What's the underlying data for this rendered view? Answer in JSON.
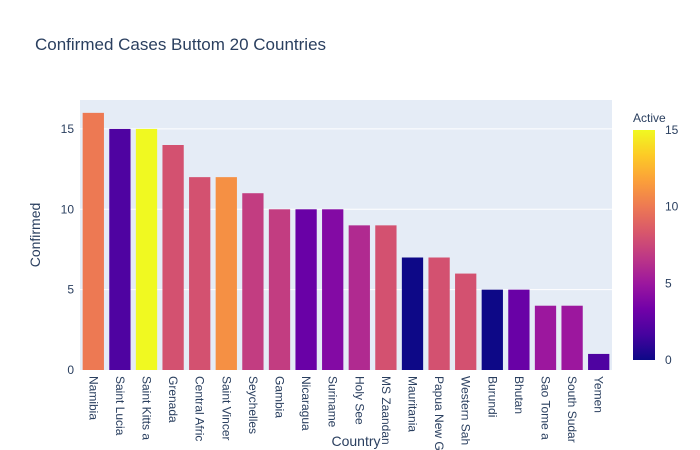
{
  "chart_data": {
    "type": "bar",
    "title": "Confirmed Cases Buttom 20 Countries",
    "xlabel": "Country",
    "ylabel": "Confirmed",
    "ylim": [
      0,
      16.8
    ],
    "yticks": [
      0,
      5,
      10,
      15
    ],
    "grid": true,
    "categories": [
      "Namibia",
      "Saint Lucia",
      "Saint Kitts a",
      "Grenada",
      "Central Afric",
      "Saint Vincer",
      "Seychelles",
      "Gambia",
      "Nicaragua",
      "Suriname",
      "Holy See",
      "MS Zaandan",
      "Mauritania",
      "Papua New G",
      "Western Sah",
      "Burundi",
      "Bhutan",
      "Sao Tome a",
      "South Sudar",
      "Yemen"
    ],
    "series": [
      {
        "values": [
          16,
          15,
          15,
          14,
          12,
          12,
          11,
          10,
          10,
          10,
          9,
          9,
          7,
          7,
          6,
          5,
          5,
          4,
          4,
          1
        ],
        "color_values": [
          10,
          2,
          15,
          8,
          8,
          11,
          7,
          7,
          3,
          4,
          6,
          8,
          0,
          8,
          8,
          0,
          3,
          5,
          5,
          2
        ]
      }
    ],
    "colorbar": {
      "title": "Active",
      "range": [
        0,
        15
      ],
      "ticks": [
        0,
        5,
        10,
        15
      ],
      "colorscale": [
        "#0d0887",
        "#46039f",
        "#7201a8",
        "#9c179e",
        "#bd3786",
        "#d8576b",
        "#ed7953",
        "#fb9f3a",
        "#fdca26",
        "#f0f921"
      ]
    },
    "colors": {
      "plot_bg": "#e5ecf6",
      "text": "#2a3f5f",
      "grid": "#ffffff"
    }
  }
}
